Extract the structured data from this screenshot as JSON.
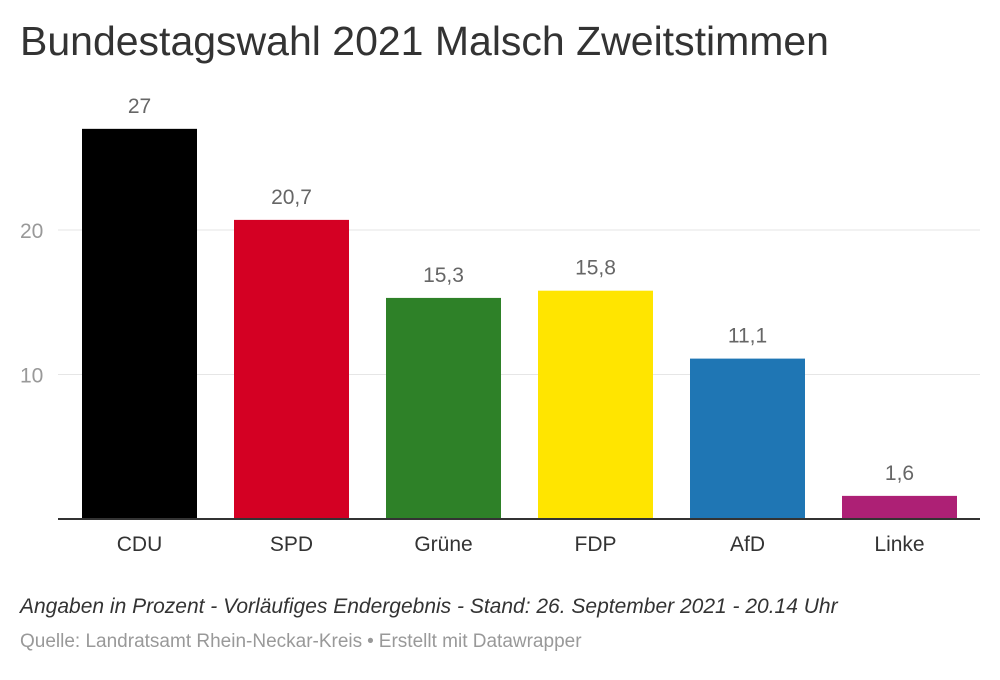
{
  "title": "Bundestagswahl 2021 Malsch Zweitstimmen",
  "chart_data": {
    "type": "bar",
    "title": "Bundestagswahl 2021 Malsch Zweitstimmen",
    "categories": [
      "CDU",
      "SPD",
      "Grüne",
      "FDP",
      "AfD",
      "Linke"
    ],
    "values": [
      27,
      20.7,
      15.3,
      15.8,
      11.1,
      1.6
    ],
    "value_labels": [
      "27",
      "20,7",
      "15,3",
      "15,8",
      "11,1",
      "1,6"
    ],
    "colors": [
      "#000000",
      "#d40023",
      "#2e8128",
      "#ffe500",
      "#1f76b4",
      "#ad2075"
    ],
    "yticks": [
      10,
      20
    ],
    "ylim": [
      0,
      27
    ],
    "xlabel": "",
    "ylabel": "",
    "grid": true
  },
  "footer": {
    "note": "Angaben in Prozent - Vorläufiges Endergebnis - Stand: 26. September 2021 - 20.14 Uhr",
    "source_label": "Quelle: Landratsamt Rhein-Neckar-Kreis",
    "separator": "•",
    "credit": "Erstellt mit Datawrapper"
  }
}
